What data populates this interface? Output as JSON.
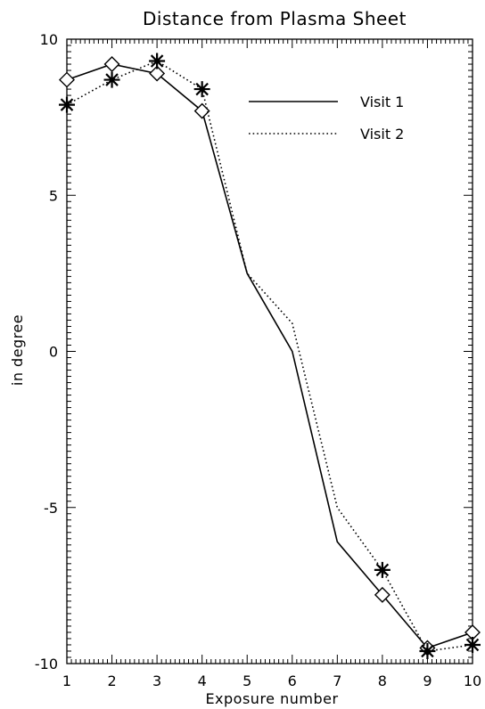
{
  "chart_data": {
    "type": "line",
    "title": "Distance from Plasma Sheet",
    "xlabel": "Exposure number",
    "ylabel": "in degree",
    "xlim": [
      1,
      10
    ],
    "ylim": [
      -10,
      10
    ],
    "x_ticks": [
      1,
      2,
      3,
      4,
      5,
      6,
      7,
      8,
      9,
      10
    ],
    "y_ticks": [
      -10,
      -5,
      0,
      5,
      10
    ],
    "legend_position": "top-right",
    "grid": false,
    "series": [
      {
        "name": "Visit 1",
        "line_style": "solid",
        "marker": "diamond",
        "x": [
          1,
          2,
          3,
          4,
          5,
          6,
          7,
          8,
          9,
          10
        ],
        "y": [
          8.7,
          9.2,
          8.9,
          7.7,
          2.5,
          0.0,
          -6.1,
          -7.8,
          -9.5,
          -9.0
        ],
        "marker_x": [
          1,
          2,
          3,
          4,
          8,
          9,
          10
        ]
      },
      {
        "name": "Visit 2",
        "line_style": "dotted",
        "marker": "asterisk",
        "x": [
          1,
          2,
          3,
          4,
          5,
          6,
          7,
          8,
          9,
          10
        ],
        "y": [
          7.9,
          8.7,
          9.3,
          8.4,
          2.5,
          0.9,
          -5.0,
          -7.0,
          -9.6,
          -9.4
        ],
        "marker_x": [
          1,
          2,
          3,
          4,
          8,
          9,
          10
        ]
      }
    ]
  }
}
